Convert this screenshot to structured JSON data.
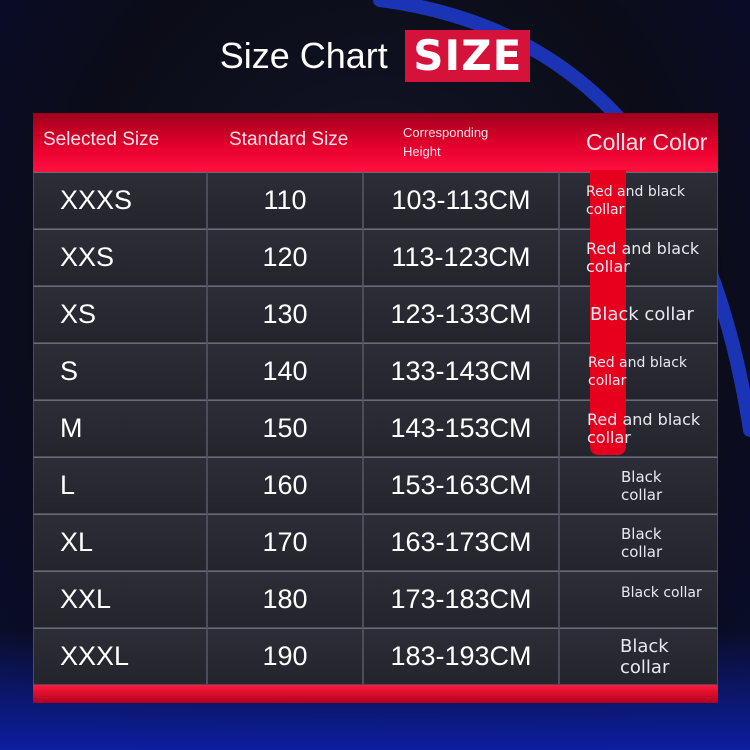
{
  "title": {
    "text": "Size Chart",
    "badge": "SIZE"
  },
  "colors": {
    "accent": "#e6001e",
    "header": "#e8002e",
    "background": "#0b0c18",
    "cell": "#2a2b33",
    "arc": "#1f3bd0"
  },
  "headers": {
    "selected": "Selected Size",
    "standard": "Standard Size",
    "height_line1": "Corresponding",
    "height_line2": "Height",
    "collar": "Collar Color"
  },
  "rows": [
    {
      "size": "XXXS",
      "standard": "110",
      "height": "103-113CM",
      "collar": "Red and black collar"
    },
    {
      "size": "XXS",
      "standard": "120",
      "height": "113-123CM",
      "collar": "Red and black collar"
    },
    {
      "size": "XS",
      "standard": "130",
      "height": "123-133CM",
      "collar": "Black collar"
    },
    {
      "size": "S",
      "standard": "140",
      "height": "133-143CM",
      "collar": "Red and black collar"
    },
    {
      "size": "M",
      "standard": "150",
      "height": "143-153CM",
      "collar": "Red and black collar"
    },
    {
      "size": "L",
      "standard": "160",
      "height": "153-163CM",
      "collar": "Black collar"
    },
    {
      "size": "XL",
      "standard": "170",
      "height": "163-173CM",
      "collar": "Black collar"
    },
    {
      "size": "XXL",
      "standard": "180",
      "height": "173-183CM",
      "collar": "Black collar"
    },
    {
      "size": "XXXL",
      "standard": "190",
      "height": "183-193CM",
      "collar": "Black collar"
    }
  ]
}
